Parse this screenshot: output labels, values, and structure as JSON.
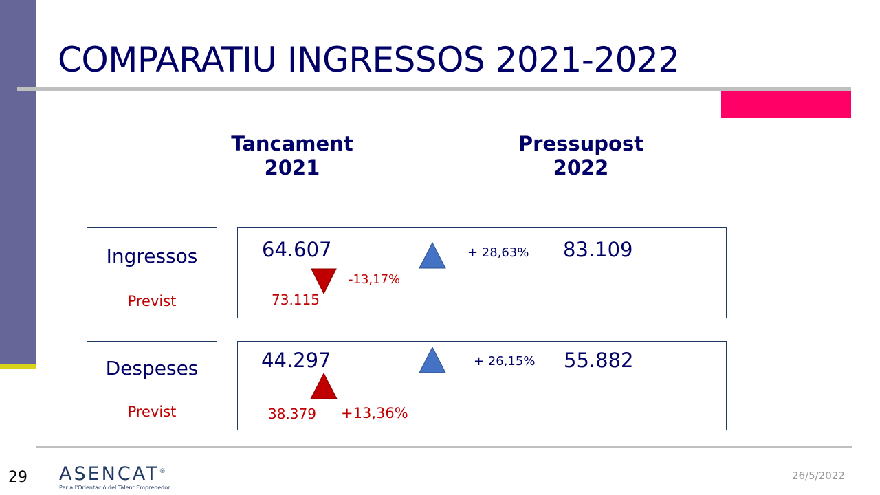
{
  "slide": {
    "title": "COMPARATIU INGRESSOS 2021-2022",
    "columns": [
      {
        "line1": "Tancament",
        "line2": "2021"
      },
      {
        "line1": "Pressupost",
        "line2": "2022"
      }
    ]
  },
  "rows": {
    "ingressos": {
      "label": "Ingressos",
      "sub_label": "Previst",
      "actual_2021": "64.607",
      "forecast_2021": "73.115",
      "forecast_change": "-13,17%",
      "change_2022": "+ 28,63%",
      "budget_2022": "83.109"
    },
    "despeses": {
      "label": "Despeses",
      "sub_label": "Previst",
      "actual_2021": "44.297",
      "forecast_2021": "38.379",
      "forecast_change": "+13,36%",
      "change_2022": "+ 26,15%",
      "budget_2022": "55.882"
    }
  },
  "footer": {
    "page_number": "29",
    "logo_text": "ASENCAT",
    "logo_mark": "®",
    "logo_tagline": "Per a l'Orientació del Talent Emprenedor",
    "date": "26/5/2022"
  },
  "colors": {
    "title": "#000066",
    "accent_bar": "#666699",
    "accent_pink": "#ff0066",
    "accent_yellow": "#d9d21a",
    "negative": "#c00000",
    "up_arrow": "#4472c4",
    "down_arrow": "#c00000"
  },
  "icons": {
    "up": "triangle-up-icon",
    "down": "triangle-down-icon"
  }
}
